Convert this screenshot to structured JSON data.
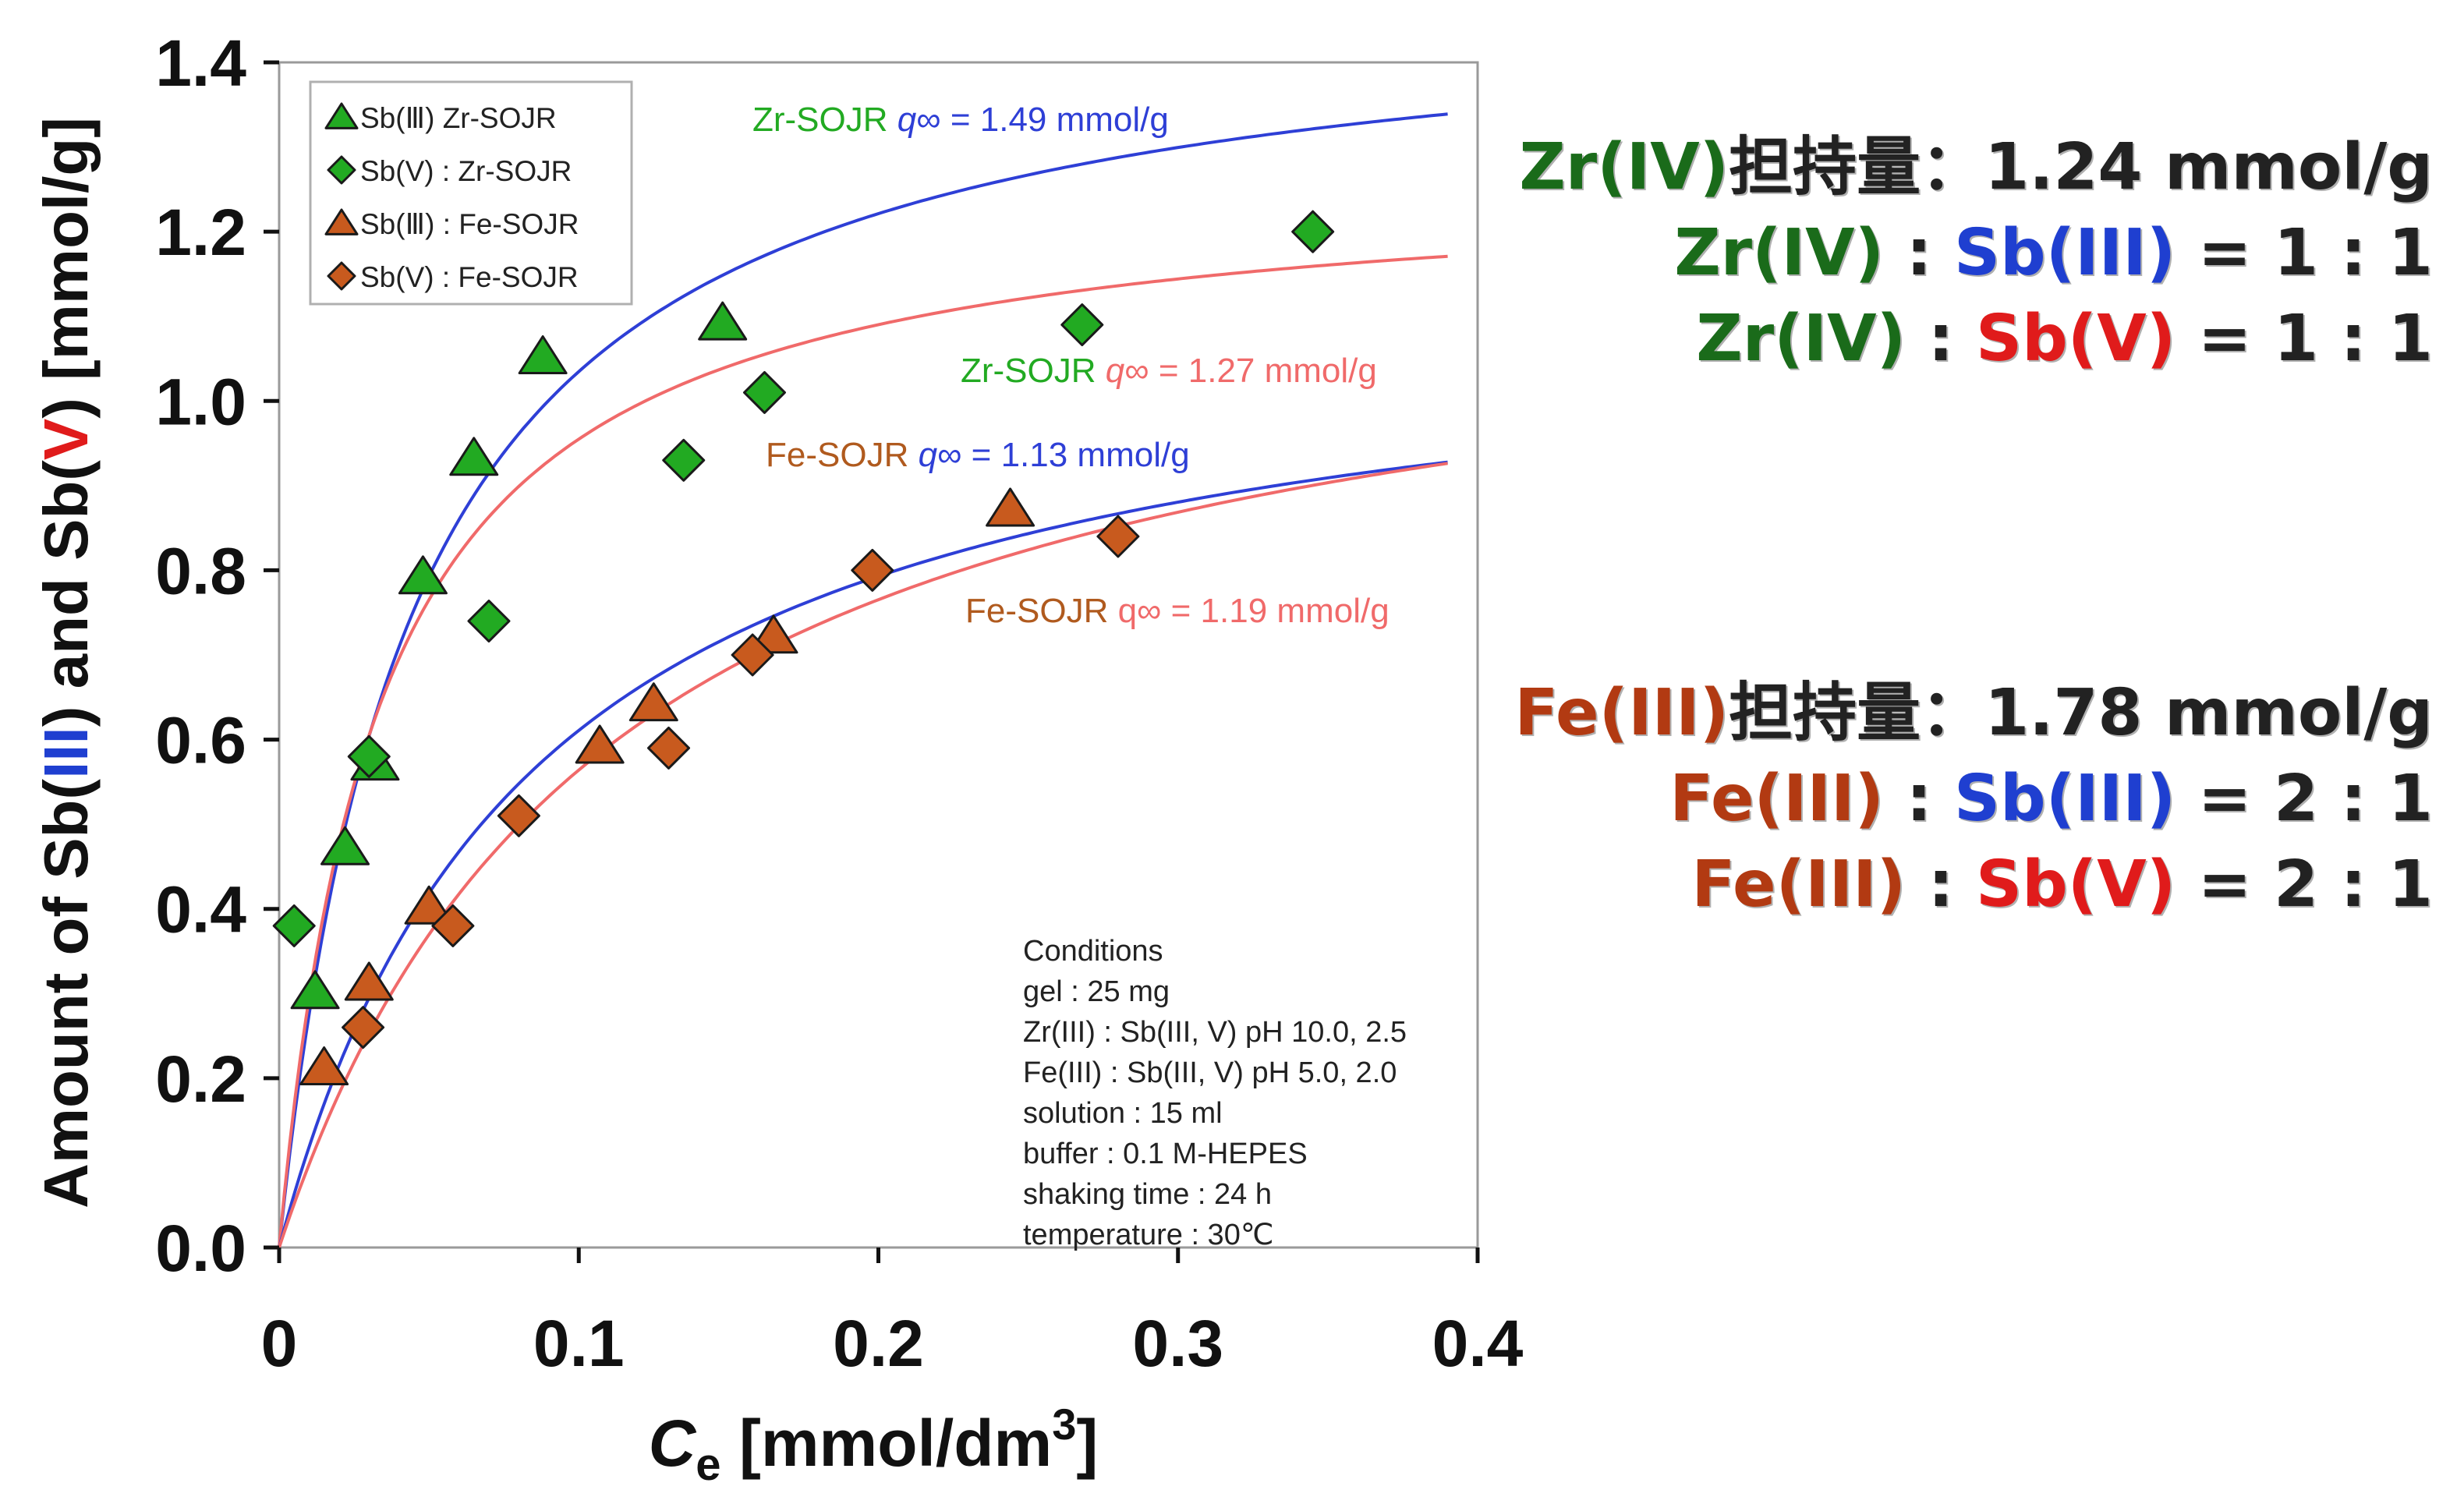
{
  "chart_data": {
    "type": "scatter",
    "xlabel_italic": "C",
    "xlabel_sub": "e",
    "xlabel_rest": " [mmol/dm",
    "xlabel_sup": "3",
    "xlabel_end": "]",
    "ylabel_parts": [
      "Amount of Sb(",
      "III",
      ") and Sb(",
      "V",
      ") [mmol/g]"
    ],
    "xlim": [
      0,
      0.4
    ],
    "ylim": [
      0,
      1.4
    ],
    "xticks": [
      "0",
      "0.1",
      "0.2",
      "0.3",
      "0.4"
    ],
    "yticks": [
      "0.0",
      "0.2",
      "0.4",
      "0.6",
      "0.8",
      "1.0",
      "1.2",
      "1.4"
    ],
    "legend": [
      {
        "label": "Sb(Ⅲ) Zr-SOJR",
        "marker": "triangle",
        "color": "#22aa22"
      },
      {
        "label": "Sb(V) : Zr-SOJR",
        "marker": "diamond",
        "color": "#22aa22"
      },
      {
        "label": "Sb(Ⅲ) : Fe-SOJR",
        "marker": "triangle",
        "color": "#c85a1e"
      },
      {
        "label": "Sb(V) : Fe-SOJR",
        "marker": "diamond",
        "color": "#c85a1e"
      }
    ],
    "series": [
      {
        "name": "Sb(III) Zr-SOJR",
        "marker": "triangle",
        "color": "#22aa22",
        "points": [
          [
            0.012,
            0.3
          ],
          [
            0.022,
            0.47
          ],
          [
            0.032,
            0.57
          ],
          [
            0.048,
            0.79
          ],
          [
            0.065,
            0.93
          ],
          [
            0.088,
            1.05
          ],
          [
            0.148,
            1.09
          ]
        ]
      },
      {
        "name": "Sb(V) Zr-SOJR",
        "marker": "diamond",
        "color": "#22aa22",
        "points": [
          [
            0.005,
            0.38
          ],
          [
            0.03,
            0.58
          ],
          [
            0.07,
            0.74
          ],
          [
            0.135,
            0.93
          ],
          [
            0.162,
            1.01
          ],
          [
            0.268,
            1.09
          ],
          [
            0.345,
            1.2
          ]
        ]
      },
      {
        "name": "Sb(III) Fe-SOJR",
        "marker": "triangle",
        "color": "#c85a1e",
        "points": [
          [
            0.015,
            0.21
          ],
          [
            0.03,
            0.31
          ],
          [
            0.05,
            0.4
          ],
          [
            0.107,
            0.59
          ],
          [
            0.125,
            0.64
          ],
          [
            0.165,
            0.72
          ],
          [
            0.244,
            0.87
          ]
        ]
      },
      {
        "name": "Sb(V) Fe-SOJR",
        "marker": "diamond",
        "color": "#c85a1e",
        "points": [
          [
            0.028,
            0.26
          ],
          [
            0.058,
            0.38
          ],
          [
            0.08,
            0.51
          ],
          [
            0.13,
            0.59
          ],
          [
            0.158,
            0.7
          ],
          [
            0.198,
            0.8
          ],
          [
            0.28,
            0.84
          ]
        ]
      }
    ],
    "fits": [
      {
        "name": "Zr-SOJR Sb(III) fit",
        "qmax": 1.49,
        "K": 0.044,
        "color": "#2e3fd6"
      },
      {
        "name": "Zr-SOJR Sb(V) fit",
        "qmax": 1.27,
        "K": 0.033,
        "color": "#f06a6a"
      },
      {
        "name": "Fe-SOJR Sb(III) fit",
        "qmax": 1.13,
        "K": 0.085,
        "color": "#2e3fd6"
      },
      {
        "name": "Fe-SOJR Sb(V) fit",
        "qmax": 1.19,
        "K": 0.111,
        "color": "#f06a6a"
      }
    ],
    "annotations": [
      {
        "prefix": "Zr-SOJR ",
        "prefix_color": "#22aa22",
        "rest": "q∞ = 1.49 mmol/g",
        "rest_color": "#2e3fd6"
      },
      {
        "prefix": "Zr-SOJR ",
        "prefix_color": "#22aa22",
        "rest": "q∞ = 1.27 mmol/g",
        "rest_color": "#f06a6a"
      },
      {
        "prefix": "Fe-SOJR ",
        "prefix_color": "#b05a1e",
        "rest": "q∞ = 1.13 mmol/g",
        "rest_color": "#2e3fd6"
      },
      {
        "prefix": "Fe-SOJR ",
        "prefix_color": "#b05a1e",
        "rest": "q∞ = 1.19 mmol/g",
        "rest_color": "#f06a6a"
      }
    ],
    "conditions": [
      "Conditions",
      "gel : 25 mg",
      "Zr(III) : Sb(III, V) pH 10.0, 2.5",
      "Fe(III) : Sb(III, V) pH 5.0, 2.0",
      "solution : 15 ml",
      "buffer : 0.1 M-HEPES",
      "shaking time : 24 h",
      "temperature : 30℃"
    ]
  },
  "side": {
    "zr_loading": "Zr(IV)担持量：1.24 mmol/g",
    "zr_loading_parts": {
      "a": "Zr(IV)",
      "b": "担持量：1.24 mmol/g"
    },
    "zr_ratio1": {
      "a": "Zr(IV)",
      "b": " : ",
      "c": "Sb(III)",
      "d": " = 1 : 1"
    },
    "zr_ratio2": {
      "a": "Zr(IV)",
      "b": " : ",
      "c": "Sb(V)",
      "d": " = 1 : 1"
    },
    "fe_loading_parts": {
      "a": "Fe(III)",
      "b": "担持量：1.78 mmol/g"
    },
    "fe_ratio1": {
      "a": "Fe(III)",
      "b": " : ",
      "c": "Sb(III)",
      "d": " = 2 : 1"
    },
    "fe_ratio2": {
      "a": "Fe(III)",
      "b": " : ",
      "c": "Sb(V)",
      "d": " = 2 : 1"
    },
    "colors": {
      "zr": "#1a6b1a",
      "fe": "#b23a12",
      "blue": "#1f3fd0",
      "red": "#e01b1b",
      "black": "#222222"
    }
  }
}
